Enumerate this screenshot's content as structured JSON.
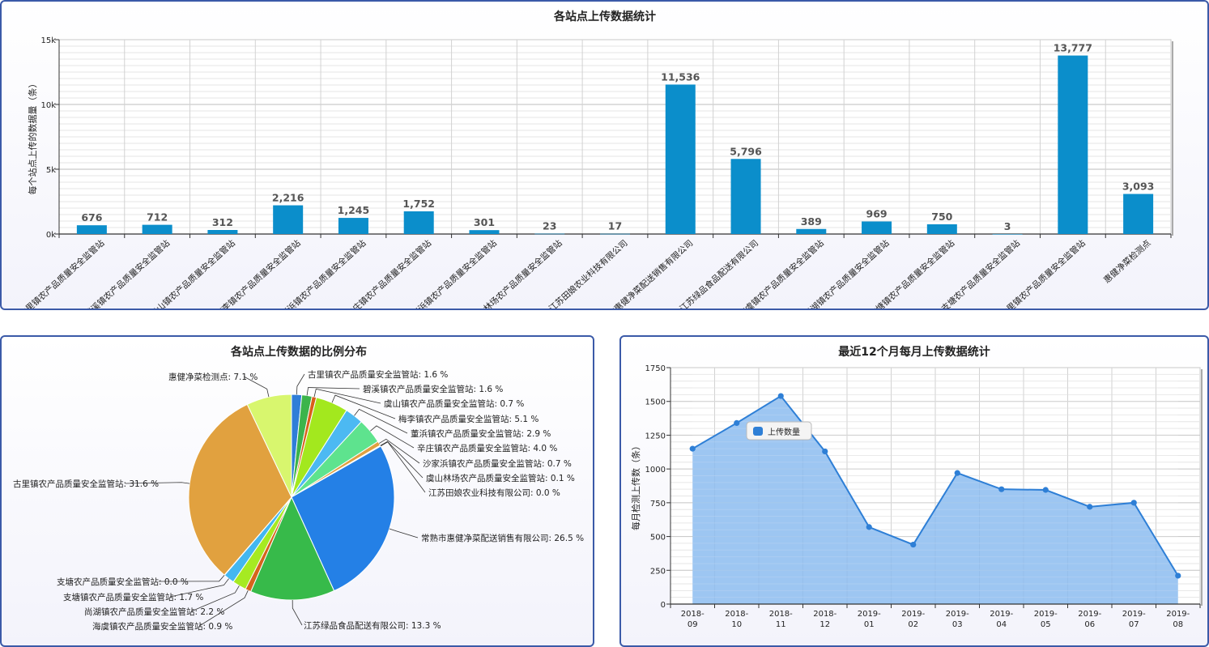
{
  "chart_data": [
    {
      "type": "bar",
      "title": "各站点上传数据统计",
      "ylabel": "每个站点上传的数据量（条）",
      "ylim": [
        0,
        15000
      ],
      "yticks": [
        "0k",
        "5k",
        "10k",
        "15k"
      ],
      "categories": [
        "古里镇农产品质量安全监管站",
        "碧溪镇农产品质量安全监管站",
        "虞山镇农产品质量安全监管站",
        "梅李镇农产品质量安全监管站",
        "董浜镇农产品质量安全监管站",
        "辛庄镇农产品质量安全监管站",
        "沙家浜镇农产品质量安全监管站",
        "虞山林场农产品质量安全监管站",
        "江苏田娘农业科技有限公司",
        "常熟市惠健净菜配送销售有限公司",
        "江苏绿品食品配送有限公司",
        "海虞镇农产品质量安全监管站",
        "尚湖镇农产品质量安全监管站",
        "支塘镇农产品质量安全监管站",
        "支塘农产品质量安全监管站",
        "古里镇农产品质量安全监管站",
        "惠健净菜检测点"
      ],
      "values": [
        676,
        712,
        312,
        2216,
        1245,
        1752,
        301,
        23,
        17,
        11536,
        5796,
        389,
        969,
        750,
        3,
        13777,
        3093
      ],
      "value_labels": [
        "676",
        "712",
        "312",
        "2,216",
        "1,245",
        "1,752",
        "301",
        "23",
        "17",
        "11,536",
        "5,796",
        "389",
        "969",
        "750",
        "3",
        "13,777",
        "3,093"
      ],
      "color": "#0b8ecb"
    },
    {
      "type": "pie",
      "title": "各站点上传数据的比例分布",
      "slices": [
        {
          "name": "古里镇农产品质量安全监管站",
          "label": "古里镇农产品质量安全监管站: 1.6 %",
          "value": 1.6,
          "color": "#2f7ed8"
        },
        {
          "name": "碧溪镇农产品质量安全监管站",
          "label": "碧溪镇农产品质量安全监管站: 1.6 %",
          "value": 1.6,
          "color": "#3cb44b"
        },
        {
          "name": "虞山镇农产品质量安全监管站",
          "label": "虞山镇农产品质量安全监管站: 0.7 %",
          "value": 0.7,
          "color": "#d95f1a"
        },
        {
          "name": "梅李镇农产品质量安全监管站",
          "label": "梅李镇农产品质量安全监管站: 5.1 %",
          "value": 5.1,
          "color": "#a3e81e"
        },
        {
          "name": "董浜镇农产品质量安全监管站",
          "label": "董浜镇农产品质量安全监管站: 2.9 %",
          "value": 2.9,
          "color": "#4cb9f2"
        },
        {
          "name": "辛庄镇农产品质量安全监管站",
          "label": "辛庄镇农产品质量安全监管站: 4.0 %",
          "value": 4.0,
          "color": "#5ee38e"
        },
        {
          "name": "沙家浜镇农产品质量安全监管站",
          "label": "沙家浜镇农产品质量安全监管站: 0.7 %",
          "value": 0.7,
          "color": "#e0a040"
        },
        {
          "name": "虞山林场农产品质量安全监管站",
          "label": "虞山林场农产品质量安全监管站: 0.1 %",
          "value": 0.1,
          "color": "#7b6ed9"
        },
        {
          "name": "江苏田娘农业科技有限公司",
          "label": "江苏田娘农业科技有限公司: 0.0 %",
          "value": 0.05,
          "color": "#8ad4ee"
        },
        {
          "name": "常熟市惠健净菜配送销售有限公司",
          "label": "常熟市惠健净菜配送销售有限公司: 26.5 %",
          "value": 26.5,
          "color": "#2480e6"
        },
        {
          "name": "江苏绿品食品配送有限公司",
          "label": "江苏绿品食品配送有限公司: 13.3 %",
          "value": 13.3,
          "color": "#37ba4a"
        },
        {
          "name": "海虞镇农产品质量安全监管站",
          "label": "海虞镇农产品质量安全监管站: 0.9 %",
          "value": 0.9,
          "color": "#d6641c"
        },
        {
          "name": "尚湖镇农产品质量安全监管站",
          "label": "尚湖镇农产品质量安全监管站: 2.2 %",
          "value": 2.2,
          "color": "#a6ea22"
        },
        {
          "name": "支塘镇农产品质量安全监管站",
          "label": "支塘镇农产品质量安全监管站: 1.7 %",
          "value": 1.7,
          "color": "#43b7f0"
        },
        {
          "name": "支塘农产品质量安全监管站",
          "label": "支塘农产品质量安全监管站: 0.0 %",
          "value": 0.05,
          "color": "#55e08a"
        },
        {
          "name": "古里镇农产品质量安全监管站",
          "label": "古里镇农产品质量安全监管站: 31.6 %",
          "value": 31.6,
          "color": "#e1a13f"
        },
        {
          "name": "惠健净菜检测点",
          "label": "惠健净菜检测点: 7.1 %",
          "value": 7.1,
          "color": "#d8f66e"
        }
      ]
    },
    {
      "type": "area",
      "title": "最近12个月每月上传数据统计",
      "ylabel": "每月检测上传数（条）",
      "ylim": [
        0,
        1750
      ],
      "yticks": [
        0,
        250,
        500,
        750,
        1000,
        1250,
        1500,
        1750
      ],
      "x": [
        "2018-09",
        "2018-10",
        "2018-11",
        "2018-12",
        "2019-01",
        "2019-02",
        "2019-03",
        "2019-04",
        "2019-05",
        "2019-06",
        "2019-07",
        "2019-08"
      ],
      "series": [
        {
          "name": "上传数量",
          "values": [
            1150,
            1340,
            1540,
            1130,
            570,
            440,
            970,
            850,
            845,
            720,
            750,
            210
          ]
        }
      ],
      "legend": "top-left",
      "fill_color": "#8cbcf0",
      "line_color": "#2e7fd6"
    }
  ]
}
